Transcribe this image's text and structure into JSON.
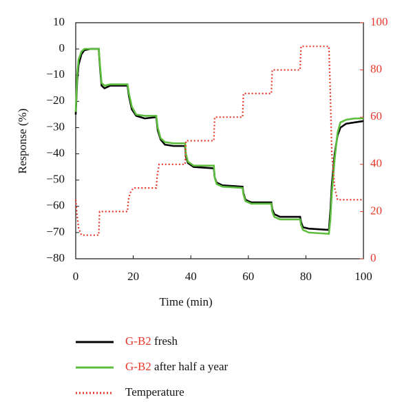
{
  "chart_data": {
    "type": "line",
    "xlabel": "Time (min)",
    "ylabel": "Response (%)",
    "xlim": [
      0,
      100
    ],
    "xticks": [
      0,
      20,
      40,
      60,
      80,
      100
    ],
    "ylim": [
      -80,
      10
    ],
    "yticks": [
      {
        "value": -80,
        "label": "−80"
      },
      {
        "value": -70,
        "label": "−70"
      },
      {
        "value": -60,
        "label": "−60"
      },
      {
        "value": -50,
        "label": "−50"
      },
      {
        "value": -40,
        "label": "−40"
      },
      {
        "value": -30,
        "label": "−30"
      },
      {
        "value": -20,
        "label": "−20"
      },
      {
        "value": -10,
        "label": "−10"
      },
      0,
      10
    ],
    "y2lim": [
      0,
      100
    ],
    "y2ticks": [
      0,
      20,
      40,
      60,
      80,
      100
    ],
    "y2color": "#e8372a",
    "series": [
      {
        "name": "G-B2 fresh",
        "color": "#000000",
        "style": "solid",
        "x": [
          0,
          0.5,
          1,
          2,
          3,
          5,
          8,
          8.5,
          9,
          10,
          12,
          18,
          18.5,
          19.5,
          21,
          24,
          28,
          28.5,
          29.5,
          31,
          34,
          38,
          38.3,
          39,
          41,
          48,
          48.3,
          49,
          51,
          58,
          58.3,
          59,
          61,
          68,
          68.3,
          69,
          71,
          78,
          78.3,
          79,
          81,
          88,
          88.5,
          89,
          90,
          91,
          92,
          94,
          97,
          100
        ],
        "values": [
          -25,
          -12,
          -6,
          -2,
          -0.5,
          0,
          0,
          -8,
          -14,
          -15,
          -14,
          -14,
          -18,
          -23,
          -25.5,
          -26.5,
          -26,
          -31,
          -34.5,
          -36.5,
          -37,
          -37,
          -41,
          -43.5,
          -45,
          -45.5,
          -49,
          -51,
          -52,
          -52.5,
          -55,
          -57.5,
          -58.5,
          -58.5,
          -61,
          -63,
          -64,
          -64,
          -66,
          -68,
          -68.5,
          -69,
          -62,
          -52,
          -40,
          -33,
          -30,
          -28.5,
          -28,
          -27.5
        ]
      },
      {
        "name": "G-B2 after half a year",
        "color": "#5cbd3c",
        "style": "solid",
        "x": [
          0,
          0.5,
          1,
          2,
          3,
          5,
          8,
          8.5,
          9,
          10,
          12,
          18,
          18.5,
          19.5,
          21,
          24,
          28,
          28.5,
          29.5,
          31,
          34,
          38,
          38.3,
          39,
          41,
          48,
          48.3,
          49,
          51,
          58,
          58.3,
          59,
          61,
          68,
          68.3,
          69,
          71,
          78,
          78.3,
          79,
          81,
          88,
          88.5,
          89,
          90,
          91,
          92,
          94,
          97,
          100
        ],
        "values": [
          -24,
          -10,
          -4,
          -1,
          0,
          0,
          0,
          -7,
          -13,
          -14,
          -13.5,
          -13.5,
          -17,
          -22,
          -25,
          -25.5,
          -25.5,
          -30,
          -34,
          -35.5,
          -36,
          -36,
          -40,
          -43,
          -44.5,
          -44.5,
          -49,
          -51.5,
          -52.5,
          -53,
          -55.5,
          -58,
          -59,
          -59,
          -62,
          -64,
          -65,
          -65,
          -67,
          -69,
          -70,
          -70.5,
          -65,
          -55,
          -42,
          -32,
          -28,
          -27,
          -26.5,
          -26.5
        ]
      },
      {
        "name": "Temperature",
        "color": "#e8372a",
        "style": "dotted",
        "axis": "y2",
        "x": [
          0,
          0.5,
          1,
          2,
          3,
          8,
          8.3,
          18,
          18.3,
          19,
          20,
          28,
          28.3,
          29,
          38,
          38.3,
          48,
          48.3,
          58,
          58.3,
          68,
          68.3,
          78,
          78.3,
          88,
          88.5,
          89,
          90,
          91,
          100
        ],
        "values": [
          25,
          18,
          13,
          10,
          10,
          10,
          20,
          20,
          25,
          28,
          30,
          30,
          35,
          40,
          40,
          50,
          50,
          60,
          60,
          70,
          70,
          80,
          80,
          90,
          90,
          70,
          45,
          30,
          25,
          25
        ]
      }
    ]
  }
}
